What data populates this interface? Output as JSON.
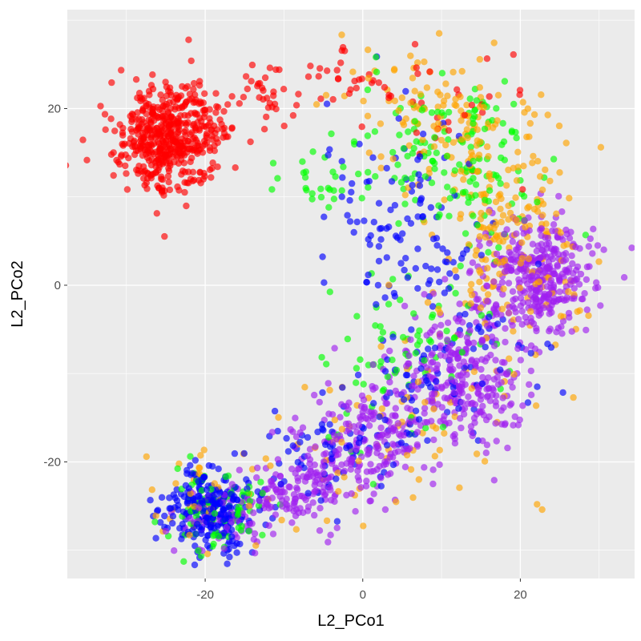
{
  "chart_data": {
    "type": "scatter",
    "title": "",
    "xlabel": "L2_PCo1",
    "ylabel": "L2_PCo2",
    "xlim": [
      -37.5,
      34.5
    ],
    "ylim": [
      -33.2,
      31.2
    ],
    "x_ticks": [
      -20,
      0,
      20
    ],
    "y_ticks": [
      -20,
      0,
      20
    ],
    "x_tick_labels": [
      "-20",
      "0",
      "20"
    ],
    "y_tick_labels": [
      "-20",
      "0",
      "20"
    ],
    "grid": true,
    "legend": "none",
    "point_alpha": 0.65,
    "colors": {
      "panel_background": "#ebebeb",
      "grid": "#ffffff",
      "red": "#ff0000",
      "orange": "#ffa500",
      "green": "#00ff00",
      "blue": "#0000ff",
      "purple": "#a020f0"
    },
    "clusters": [
      {
        "color": "red",
        "n": 520,
        "cx": -24.5,
        "cy": 16.5,
        "sx": 3.2,
        "sy": 3.0,
        "rot": 0.55
      },
      {
        "color": "red",
        "n": 40,
        "cx": -13,
        "cy": 21.5,
        "sx": 3.5,
        "sy": 2.0,
        "rot": 0.2
      },
      {
        "color": "red",
        "n": 25,
        "cx": -2,
        "cy": 24,
        "sx": 3.5,
        "sy": 2.0,
        "rot": 0.0
      },
      {
        "color": "red",
        "n": 30,
        "cx": 11,
        "cy": 20.5,
        "sx": 5,
        "sy": 4,
        "rot": 0.0
      },
      {
        "color": "blue",
        "n": 260,
        "cx": -19.5,
        "cy": -25.5,
        "sx": 2.6,
        "sy": 2.2,
        "rot": -0.2
      },
      {
        "color": "blue",
        "n": 120,
        "cx": 6,
        "cy": 8,
        "sx": 4.5,
        "sy": 6.5,
        "rot": 0.3
      },
      {
        "color": "blue",
        "n": 90,
        "cx": 9,
        "cy": -11,
        "sx": 6,
        "sy": 4,
        "rot": 0.6
      },
      {
        "color": "blue",
        "n": 60,
        "cx": -5,
        "cy": -19,
        "sx": 5,
        "sy": 3,
        "rot": 0.4
      },
      {
        "color": "green",
        "n": 90,
        "cx": -19,
        "cy": -25,
        "sx": 3.0,
        "sy": 2.6,
        "rot": 0.0
      },
      {
        "color": "green",
        "n": 150,
        "cx": 12,
        "cy": 15,
        "sx": 5.5,
        "sy": 4.5,
        "rot": -0.3
      },
      {
        "color": "green",
        "n": 80,
        "cx": 6,
        "cy": -8,
        "sx": 6,
        "sy": 5,
        "rot": 0.6
      },
      {
        "color": "green",
        "n": 30,
        "cx": -4,
        "cy": 12,
        "sx": 4,
        "sy": 2.5,
        "rot": 0.2
      },
      {
        "color": "orange",
        "n": 200,
        "cx": 18,
        "cy": 5,
        "sx": 5.0,
        "sy": 7.5,
        "rot": 0.2
      },
      {
        "color": "orange",
        "n": 120,
        "cx": 12,
        "cy": 19,
        "sx": 6,
        "sy": 3.5,
        "rot": -0.2
      },
      {
        "color": "orange",
        "n": 70,
        "cx": 2,
        "cy": -17,
        "sx": 8,
        "sy": 4,
        "rot": 0.5
      },
      {
        "color": "orange",
        "n": 40,
        "cx": -19,
        "cy": -24,
        "sx": 3.5,
        "sy": 3,
        "rot": 0.0
      },
      {
        "color": "purple",
        "n": 360,
        "cx": 22.5,
        "cy": 1,
        "sx": 3.5,
        "sy": 3.2,
        "rot": 0.0
      },
      {
        "color": "purple",
        "n": 280,
        "cx": 13,
        "cy": -10,
        "sx": 4,
        "sy": 4,
        "rot": 0.5
      },
      {
        "color": "purple",
        "n": 230,
        "cx": 0,
        "cy": -18,
        "sx": 5,
        "sy": 3,
        "rot": 0.45
      },
      {
        "color": "purple",
        "n": 130,
        "cx": -10,
        "cy": -23.5,
        "sx": 4,
        "sy": 2.2,
        "rot": 0.3
      },
      {
        "color": "purple",
        "n": 40,
        "cx": -19,
        "cy": -27,
        "sx": 2.5,
        "sy": 2,
        "rot": 0.0
      }
    ]
  }
}
